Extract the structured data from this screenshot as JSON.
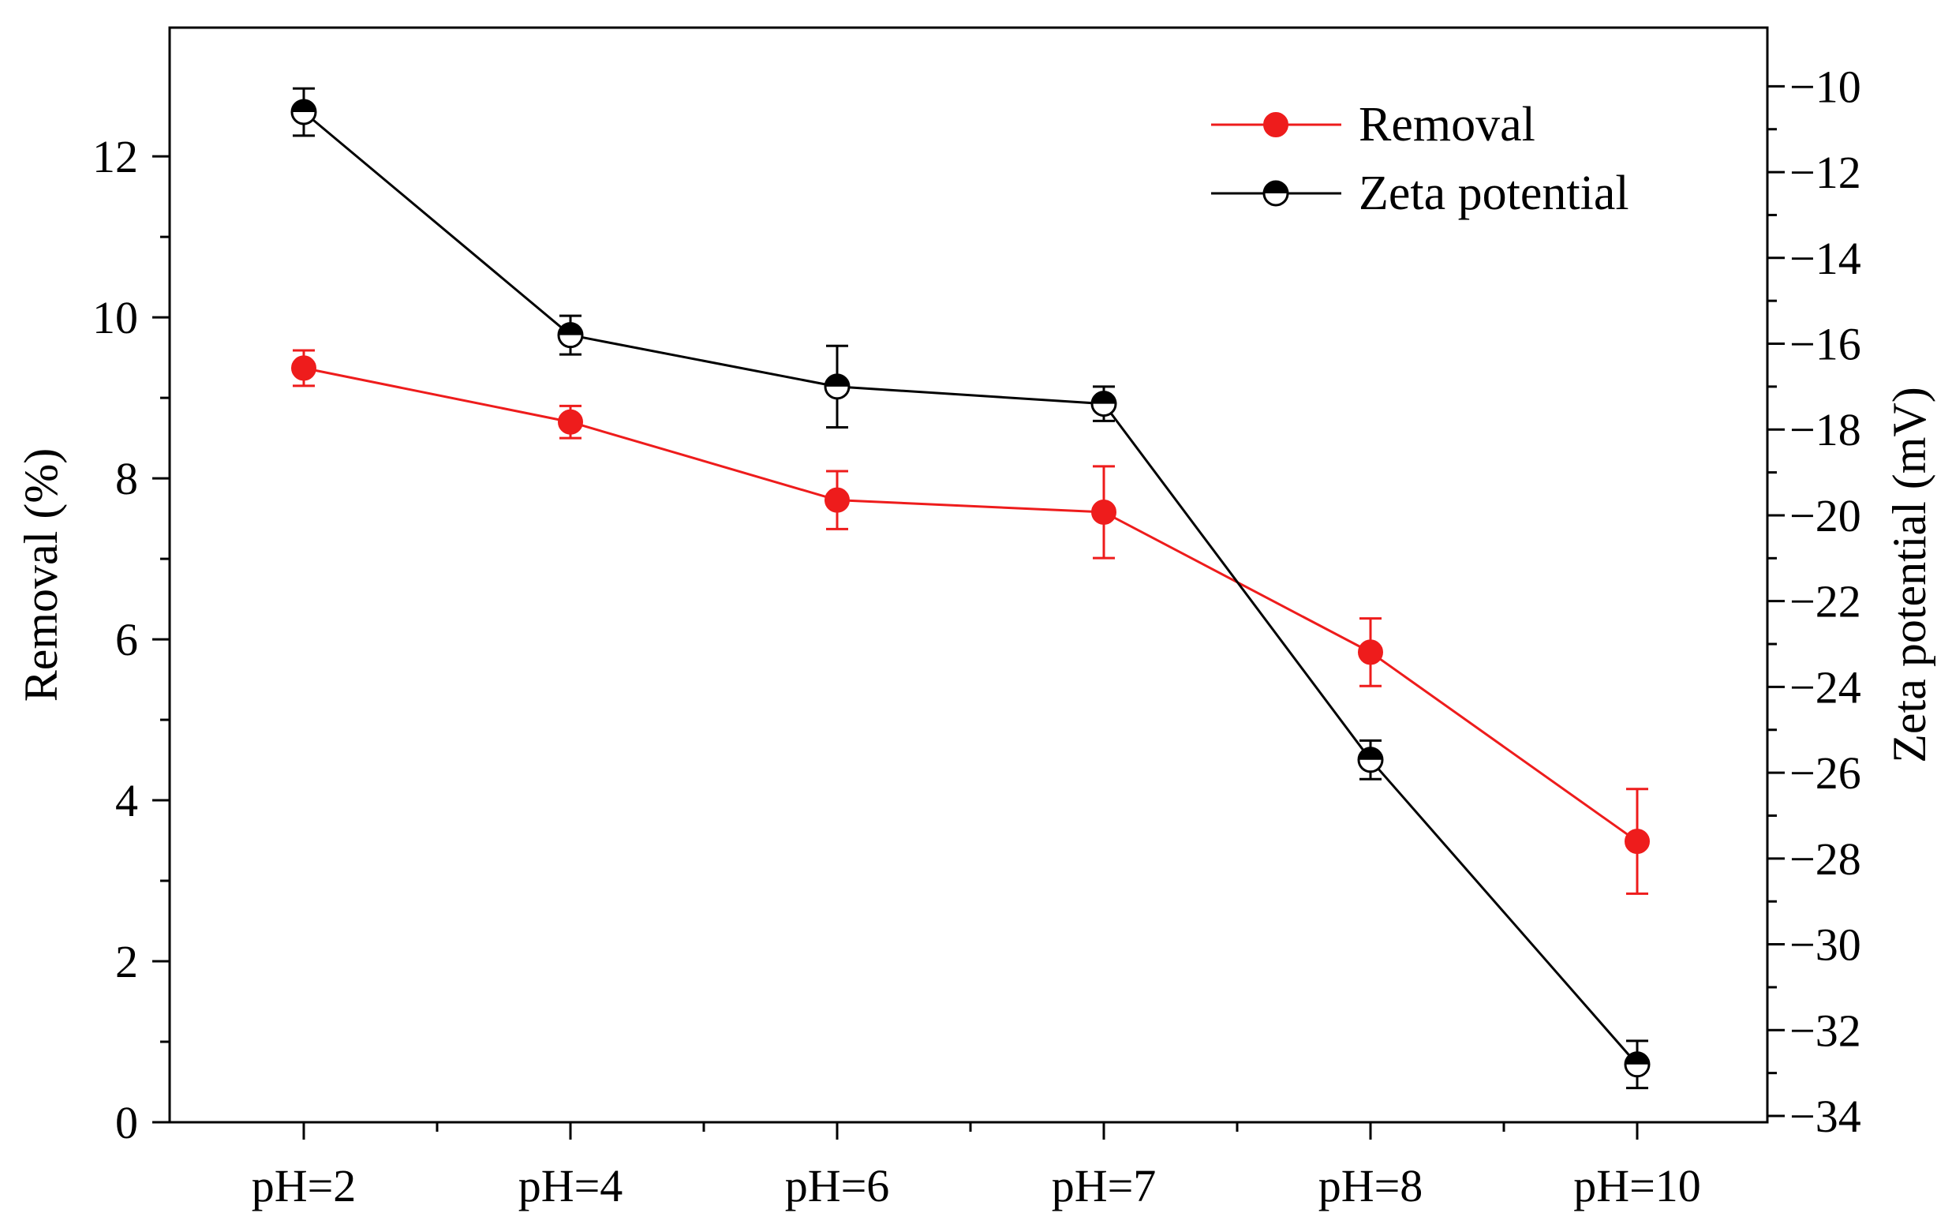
{
  "chart_data": {
    "type": "line",
    "categories": [
      "pH=2",
      "pH=4",
      "pH=6",
      "pH=7",
      "pH=8",
      "pH=10"
    ],
    "series": [
      {
        "name": "Removal",
        "axis": "left",
        "color": "#ee1c1c",
        "marker": "filled-circle",
        "values": [
          9.37,
          8.7,
          7.73,
          7.58,
          5.84,
          3.49
        ],
        "errors": [
          0.22,
          0.2,
          0.36,
          0.57,
          0.42,
          0.65
        ]
      },
      {
        "name": "Zeta potential",
        "axis": "right",
        "color": "#000000",
        "marker": "half-filled-circle",
        "values": [
          -10.6,
          -15.8,
          -17.0,
          -17.4,
          -25.7,
          -32.8
        ],
        "errors": [
          0.55,
          0.45,
          0.95,
          0.4,
          0.45,
          0.55
        ]
      }
    ],
    "y_left": {
      "label": "Removal (%)",
      "ylim": [
        0,
        13.6
      ],
      "ticks": [
        0,
        2,
        4,
        6,
        8,
        10,
        12
      ],
      "tick_labels": [
        "0",
        "2",
        "4",
        "6",
        "8",
        "10",
        "12"
      ]
    },
    "y_right": {
      "label": "Zeta potential (mV)",
      "ylim": [
        -34,
        -9
      ],
      "ticks": [
        -34,
        -32,
        -30,
        -28,
        -26,
        -24,
        -22,
        -20,
        -18,
        -16,
        -14,
        -12,
        -10
      ],
      "tick_labels": [
        "-34",
        "-32",
        "-30",
        "-28",
        "-26",
        "-24",
        "-22",
        "-20",
        "-18",
        "-16",
        "-14",
        "-12",
        "-10"
      ]
    },
    "xlabel": "",
    "legend_position": "top-right",
    "grid": false
  }
}
